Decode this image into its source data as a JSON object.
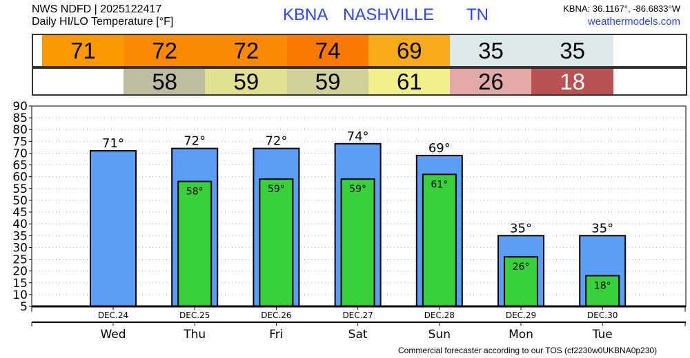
{
  "header": {
    "line1": "NWS NDFD | 2025122417",
    "line2": "Daily HI/LO Temperature [°F]",
    "station": "KBNA",
    "city": "NASHVILLE",
    "state": "TN",
    "coords": "KBNA: 36.1167°, -86.6833°W",
    "site": "weathermodels.com"
  },
  "hi_strip": [
    {
      "value": "71",
      "color": "#FB9A00",
      "text": "#000"
    },
    {
      "value": "72",
      "color": "#FA8A00",
      "text": "#000"
    },
    {
      "value": "72",
      "color": "#FA8A00",
      "text": "#000"
    },
    {
      "value": "74",
      "color": "#F87800",
      "text": "#000"
    },
    {
      "value": "69",
      "color": "#F9AA1C",
      "text": "#000"
    },
    {
      "value": "35",
      "color": "#DDE8E8",
      "text": "#000"
    },
    {
      "value": "35",
      "color": "#DDE8E8",
      "text": "#000"
    }
  ],
  "lo_strip": [
    null,
    {
      "value": "58",
      "color": "#BDBDA0",
      "text": "#000"
    },
    {
      "value": "59",
      "color": "#E0E08E",
      "text": "#000"
    },
    {
      "value": "59",
      "color": "#D0D09A",
      "text": "#000"
    },
    {
      "value": "61",
      "color": "#F0F08A",
      "text": "#000"
    },
    {
      "value": "26",
      "color": "#E3A8A8",
      "text": "#000"
    },
    {
      "value": "18",
      "color": "#BB5252",
      "text": "#fff"
    }
  ],
  "footer": "Commercial forecaster according to our TOS (cf2230w0UKBNA0p230)",
  "chart_data": {
    "type": "bar",
    "dates": [
      "DEC.24",
      "DEC.25",
      "DEC.26",
      "DEC.27",
      "DEC.28",
      "DEC.29",
      "DEC.30"
    ],
    "categories": [
      "Wed",
      "Thu",
      "Fri",
      "Sat",
      "Sun",
      "Mon",
      "Tue"
    ],
    "series": [
      {
        "name": "High",
        "color": "#5A9EF5",
        "values": [
          71,
          72,
          72,
          74,
          69,
          35,
          35
        ],
        "labels": [
          "71°",
          "72°",
          "72°",
          "74°",
          "69°",
          "35°",
          "35°"
        ]
      },
      {
        "name": "Low",
        "color": "#38D13C",
        "values": [
          null,
          58,
          59,
          59,
          61,
          26,
          18
        ],
        "labels": [
          null,
          "58°",
          "59°",
          "59°",
          "61°",
          "26°",
          "18°"
        ]
      }
    ],
    "ylim": [
      5,
      90
    ],
    "yticks": [
      "5",
      "10",
      "15",
      "20",
      "25",
      "30",
      "35",
      "40",
      "45",
      "50",
      "55",
      "60",
      "65",
      "70",
      "75",
      "80",
      "85",
      "90"
    ],
    "grid": true
  }
}
